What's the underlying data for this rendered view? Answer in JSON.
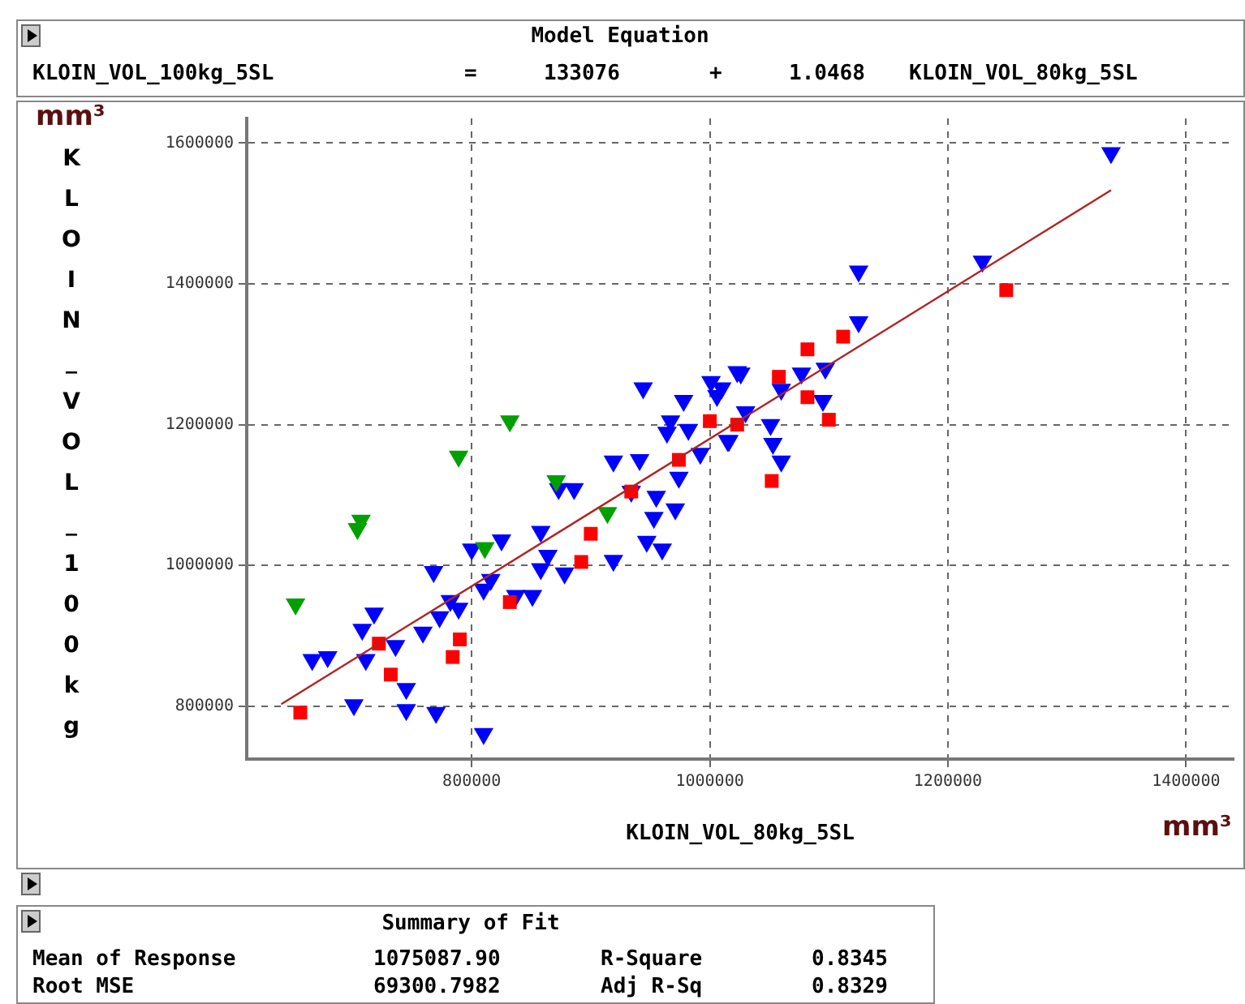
{
  "chart_data": {
    "type": "scatter",
    "xlabel": "KLOIN_VOL_80kg_5SL",
    "ylabel": "KLOIN_VOL_100kg",
    "xlim": [
      611000,
      1440000
    ],
    "ylim": [
      725000,
      1635000
    ],
    "xticks": [
      800000,
      1000000,
      1200000,
      1400000
    ],
    "yticks": [
      800000,
      1000000,
      1200000,
      1400000,
      1600000
    ],
    "grid": true,
    "series": [
      {
        "type": "scatter",
        "marker": "triangle",
        "color": "#0000ff",
        "x": [
          666000,
          679000,
          701000,
          711000,
          718000,
          708000,
          736000,
          745000,
          745000,
          770000,
          759000,
          768000,
          773000,
          789000,
          782000,
          800000,
          810000,
          810000,
          816000,
          825000,
          837000,
          851000,
          858000,
          858000,
          864000,
          878000,
          873000,
          886000,
          919000,
          919000,
          941000,
          934000,
          955000,
          953000,
          947000,
          960000,
          971000,
          974000,
          964000,
          982000,
          992000,
          1015000,
          944000,
          1001000,
          1023000,
          1006000,
          1337000,
          1229000,
          1125000,
          1125000,
          1026000,
          1010000,
          1077000,
          1097000,
          1095000,
          1060000,
          1030000,
          1016000,
          1051000,
          1053000,
          1060000,
          978000,
          967000
        ],
        "values": [
          866000,
          870000,
          802000,
          866000,
          932000,
          909000,
          886000,
          825000,
          795000,
          791000,
          905000,
          991000,
          927000,
          939000,
          950000,
          1023000,
          761000,
          966000,
          980000,
          1036000,
          957000,
          957000,
          1048000,
          995000,
          1014000,
          989000,
          1109000,
          1109000,
          1148000,
          1007000,
          1150000,
          1105000,
          1098000,
          1068000,
          1034000,
          1023000,
          1080000,
          1125000,
          1189000,
          1193000,
          1159000,
          1177000,
          1252000,
          1261000,
          1275000,
          1241000,
          1586000,
          1432000,
          1418000,
          1346000,
          1273000,
          1252000,
          1273000,
          1280000,
          1234000,
          1250000,
          1218000,
          1177000,
          1200000,
          1173000,
          1148000,
          1234000,
          1205000
        ]
      },
      {
        "type": "scatter",
        "marker": "triangle",
        "color": "#00a000",
        "x": [
          652000,
          704000,
          707000,
          789000,
          832000,
          871000,
          811000,
          914000
        ],
        "values": [
          945000,
          1052000,
          1064000,
          1155000,
          1205000,
          1120000,
          1025000,
          1075000
        ]
      },
      {
        "type": "scatter",
        "marker": "square",
        "color": "#ff0000",
        "x": [
          656000,
          722000,
          732000,
          784000,
          790000,
          832000,
          892000,
          900000,
          934000,
          974000,
          1000000,
          1023000,
          1052000,
          1058000,
          1082000,
          1082000,
          1100000,
          1112000,
          1249000
        ],
        "values": [
          791000,
          889000,
          845000,
          870000,
          895000,
          948000,
          1005000,
          1045000,
          1105000,
          1150000,
          1205000,
          1200000,
          1120000,
          1268000,
          1307000,
          1239000,
          1207000,
          1325000,
          1391000
        ]
      },
      {
        "type": "line",
        "marker": "none",
        "color": "#b22222",
        "x": [
          640000,
          1337000
        ],
        "values": [
          803000,
          1533000
        ]
      }
    ],
    "annotations": [
      "mm³",
      "mm³",
      "Model Equation",
      "KLOIN_VOL_100kg_5SL",
      "=",
      "133076",
      "+",
      "1.0468",
      "KLOIN_VOL_80kg_5SL",
      "Summary of Fit",
      "Mean of Response",
      "1075087.90",
      "R-Square",
      "0.8345",
      "Root MSE",
      "69300.7982",
      "Adj R-Sq",
      "0.8329"
    ]
  }
}
